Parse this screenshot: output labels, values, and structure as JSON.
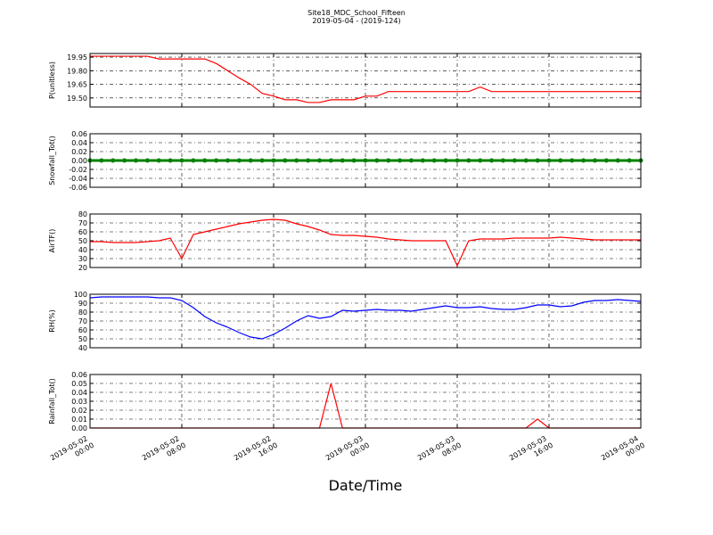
{
  "chart_data": [
    {
      "type": "line",
      "title": "Site18_MDC_School_Fifteen",
      "subtitle": "2019-05-04 - (2019-124)",
      "ylabel": "P(unitless)",
      "x": [
        "2019-05-02 00:00",
        "2019-05-02 01:00",
        "2019-05-02 02:00",
        "2019-05-02 03:00",
        "2019-05-02 04:00",
        "2019-05-02 05:00",
        "2019-05-02 06:00",
        "2019-05-02 07:00",
        "2019-05-02 08:00",
        "2019-05-02 09:00",
        "2019-05-02 10:00",
        "2019-05-02 11:00",
        "2019-05-02 12:00",
        "2019-05-02 13:00",
        "2019-05-02 14:00",
        "2019-05-02 15:00",
        "2019-05-02 16:00",
        "2019-05-02 17:00",
        "2019-05-02 18:00",
        "2019-05-02 19:00",
        "2019-05-02 20:00",
        "2019-05-02 21:00",
        "2019-05-02 22:00",
        "2019-05-02 23:00",
        "2019-05-03 00:00",
        "2019-05-03 01:00",
        "2019-05-03 02:00",
        "2019-05-03 03:00",
        "2019-05-03 04:00",
        "2019-05-03 05:00",
        "2019-05-03 06:00",
        "2019-05-03 07:00",
        "2019-05-03 08:00",
        "2019-05-03 09:00",
        "2019-05-03 10:00",
        "2019-05-03 11:00",
        "2019-05-03 12:00",
        "2019-05-03 13:00",
        "2019-05-03 14:00",
        "2019-05-03 15:00",
        "2019-05-03 16:00",
        "2019-05-03 17:00",
        "2019-05-03 18:00",
        "2019-05-03 19:00",
        "2019-05-03 20:00",
        "2019-05-03 21:00",
        "2019-05-03 22:00",
        "2019-05-03 23:00",
        "2019-05-04 00:00"
      ],
      "series": [
        {
          "name": "P(unitless)",
          "color": "#ff0000",
          "values": [
            19.96,
            19.96,
            19.96,
            19.96,
            19.96,
            19.96,
            19.93,
            19.93,
            19.93,
            19.93,
            19.93,
            19.88,
            19.8,
            19.72,
            19.65,
            19.55,
            19.52,
            19.48,
            19.48,
            19.45,
            19.45,
            19.48,
            19.48,
            19.48,
            19.52,
            19.52,
            19.57,
            19.57,
            19.57,
            19.57,
            19.57,
            19.57,
            19.57,
            19.57,
            19.62,
            19.57,
            19.57,
            19.57,
            19.57,
            19.57,
            19.57,
            19.57,
            19.57,
            19.57,
            19.57,
            19.57,
            19.57,
            19.57,
            19.57
          ]
        }
      ],
      "xlim": [
        "2019-05-02 00:00",
        "2019-05-04 00:00"
      ],
      "xticks": [
        "2019-05-02 00:00",
        "2019-05-02 08:00",
        "2019-05-02 16:00",
        "2019-05-03 00:00",
        "2019-05-03 08:00",
        "2019-05-03 16:00",
        "2019-05-04 00:00"
      ],
      "ylim": [
        19.4,
        19.99
      ],
      "yticks": [
        {
          "value": 19.5,
          "label": "19.50"
        },
        19.65,
        {
          "value": 19.8,
          "label": "19.80"
        },
        19.95
      ],
      "grid": true
    },
    {
      "type": "line",
      "ylabel": "Snowfall_Tot()",
      "marker": true,
      "x": [
        "2019-05-02 00:00",
        "2019-05-02 01:00",
        "2019-05-02 02:00",
        "2019-05-02 03:00",
        "2019-05-02 04:00",
        "2019-05-02 05:00",
        "2019-05-02 06:00",
        "2019-05-02 07:00",
        "2019-05-02 08:00",
        "2019-05-02 09:00",
        "2019-05-02 10:00",
        "2019-05-02 11:00",
        "2019-05-02 12:00",
        "2019-05-02 13:00",
        "2019-05-02 14:00",
        "2019-05-02 15:00",
        "2019-05-02 16:00",
        "2019-05-02 17:00",
        "2019-05-02 18:00",
        "2019-05-02 19:00",
        "2019-05-02 20:00",
        "2019-05-02 21:00",
        "2019-05-02 22:00",
        "2019-05-02 23:00",
        "2019-05-03 00:00",
        "2019-05-03 01:00",
        "2019-05-03 02:00",
        "2019-05-03 03:00",
        "2019-05-03 04:00",
        "2019-05-03 05:00",
        "2019-05-03 06:00",
        "2019-05-03 07:00",
        "2019-05-03 08:00",
        "2019-05-03 09:00",
        "2019-05-03 10:00",
        "2019-05-03 11:00",
        "2019-05-03 12:00",
        "2019-05-03 13:00",
        "2019-05-03 14:00",
        "2019-05-03 15:00",
        "2019-05-03 16:00",
        "2019-05-03 17:00",
        "2019-05-03 18:00",
        "2019-05-03 19:00",
        "2019-05-03 20:00",
        "2019-05-03 21:00",
        "2019-05-03 22:00",
        "2019-05-03 23:00",
        "2019-05-04 00:00"
      ],
      "series": [
        {
          "name": "Snowfall_Tot()",
          "color": "#008000",
          "values": [
            0,
            0,
            0,
            0,
            0,
            0,
            0,
            0,
            0,
            0,
            0,
            0,
            0,
            0,
            0,
            0,
            0,
            0,
            0,
            0,
            0,
            0,
            0,
            0,
            0,
            0,
            0,
            0,
            0,
            0,
            0,
            0,
            0,
            0,
            0,
            0,
            0,
            0,
            0,
            0,
            0,
            0,
            0,
            0,
            0,
            0,
            0,
            0,
            0
          ]
        }
      ],
      "xlim": [
        "2019-05-02 00:00",
        "2019-05-04 00:00"
      ],
      "xticks": [
        "2019-05-02 00:00",
        "2019-05-02 08:00",
        "2019-05-02 16:00",
        "2019-05-03 00:00",
        "2019-05-03 08:00",
        "2019-05-03 16:00",
        "2019-05-04 00:00"
      ],
      "ylim": [
        -0.06,
        0.06
      ],
      "yticks": [
        -0.06,
        -0.04,
        -0.02,
        {
          "value": 0,
          "label": "0.00"
        },
        0.02,
        0.04,
        0.06
      ],
      "grid": true
    },
    {
      "type": "line",
      "ylabel": "AirTF()",
      "x": [
        "2019-05-02 00:00",
        "2019-05-02 01:00",
        "2019-05-02 02:00",
        "2019-05-02 03:00",
        "2019-05-02 04:00",
        "2019-05-02 05:00",
        "2019-05-02 06:00",
        "2019-05-02 07:00",
        "2019-05-02 08:00",
        "2019-05-02 09:00",
        "2019-05-02 10:00",
        "2019-05-02 11:00",
        "2019-05-02 12:00",
        "2019-05-02 13:00",
        "2019-05-02 14:00",
        "2019-05-02 15:00",
        "2019-05-02 16:00",
        "2019-05-02 17:00",
        "2019-05-02 18:00",
        "2019-05-02 19:00",
        "2019-05-02 20:00",
        "2019-05-02 21:00",
        "2019-05-02 22:00",
        "2019-05-02 23:00",
        "2019-05-03 00:00",
        "2019-05-03 01:00",
        "2019-05-03 02:00",
        "2019-05-03 03:00",
        "2019-05-03 04:00",
        "2019-05-03 05:00",
        "2019-05-03 06:00",
        "2019-05-03 07:00",
        "2019-05-03 08:00",
        "2019-05-03 09:00",
        "2019-05-03 10:00",
        "2019-05-03 11:00",
        "2019-05-03 12:00",
        "2019-05-03 13:00",
        "2019-05-03 14:00",
        "2019-05-03 15:00",
        "2019-05-03 16:00",
        "2019-05-03 17:00",
        "2019-05-03 18:00",
        "2019-05-03 19:00",
        "2019-05-03 20:00",
        "2019-05-03 21:00",
        "2019-05-03 22:00",
        "2019-05-03 23:00",
        "2019-05-04 00:00"
      ],
      "series": [
        {
          "name": "AirTF()",
          "color": "#ff0000",
          "values": [
            49,
            49,
            48,
            48,
            48,
            49,
            50,
            53,
            30,
            57,
            60,
            63,
            66,
            69,
            71,
            73,
            74,
            73,
            69,
            66,
            62,
            57,
            56,
            56,
            55,
            54,
            52,
            51,
            50,
            50,
            50,
            50,
            22,
            50,
            52,
            52,
            52,
            53,
            53,
            53,
            53,
            54,
            53,
            52,
            51,
            51,
            51,
            51,
            51
          ]
        }
      ],
      "xlim": [
        "2019-05-02 00:00",
        "2019-05-04 00:00"
      ],
      "xticks": [
        "2019-05-02 00:00",
        "2019-05-02 08:00",
        "2019-05-02 16:00",
        "2019-05-03 00:00",
        "2019-05-03 08:00",
        "2019-05-03 16:00",
        "2019-05-04 00:00"
      ],
      "ylim": [
        20,
        80
      ],
      "yticks": [
        20,
        30,
        40,
        50,
        60,
        70,
        80
      ],
      "grid": true
    },
    {
      "type": "line",
      "ylabel": "RH(%)",
      "x": [
        "2019-05-02 00:00",
        "2019-05-02 01:00",
        "2019-05-02 02:00",
        "2019-05-02 03:00",
        "2019-05-02 04:00",
        "2019-05-02 05:00",
        "2019-05-02 06:00",
        "2019-05-02 07:00",
        "2019-05-02 08:00",
        "2019-05-02 09:00",
        "2019-05-02 10:00",
        "2019-05-02 11:00",
        "2019-05-02 12:00",
        "2019-05-02 13:00",
        "2019-05-02 14:00",
        "2019-05-02 15:00",
        "2019-05-02 16:00",
        "2019-05-02 17:00",
        "2019-05-02 18:00",
        "2019-05-02 19:00",
        "2019-05-02 20:00",
        "2019-05-02 21:00",
        "2019-05-02 22:00",
        "2019-05-02 23:00",
        "2019-05-03 00:00",
        "2019-05-03 01:00",
        "2019-05-03 02:00",
        "2019-05-03 03:00",
        "2019-05-03 04:00",
        "2019-05-03 05:00",
        "2019-05-03 06:00",
        "2019-05-03 07:00",
        "2019-05-03 08:00",
        "2019-05-03 09:00",
        "2019-05-03 10:00",
        "2019-05-03 11:00",
        "2019-05-03 12:00",
        "2019-05-03 13:00",
        "2019-05-03 14:00",
        "2019-05-03 15:00",
        "2019-05-03 16:00",
        "2019-05-03 17:00",
        "2019-05-03 18:00",
        "2019-05-03 19:00",
        "2019-05-03 20:00",
        "2019-05-03 21:00",
        "2019-05-03 22:00",
        "2019-05-03 23:00",
        "2019-05-04 00:00"
      ],
      "series": [
        {
          "name": "RH(%)",
          "color": "#0000ff",
          "values": [
            96,
            97,
            97,
            97,
            97,
            97,
            96,
            96,
            93,
            85,
            75,
            68,
            63,
            57,
            52,
            50,
            55,
            62,
            70,
            76,
            73,
            75,
            82,
            81,
            82,
            83,
            82,
            82,
            81,
            83,
            85,
            87,
            85,
            85,
            86,
            84,
            83,
            83,
            85,
            88,
            88,
            86,
            87,
            91,
            93,
            93,
            94,
            93,
            92
          ]
        }
      ],
      "xlim": [
        "2019-05-02 00:00",
        "2019-05-04 00:00"
      ],
      "xticks": [
        "2019-05-02 00:00",
        "2019-05-02 08:00",
        "2019-05-02 16:00",
        "2019-05-03 00:00",
        "2019-05-03 08:00",
        "2019-05-03 16:00",
        "2019-05-04 00:00"
      ],
      "ylim": [
        40,
        100
      ],
      "yticks": [
        40,
        50,
        60,
        70,
        80,
        90,
        100
      ],
      "grid": true
    },
    {
      "type": "line",
      "ylabel": "Rainfall_Tot()",
      "xlabel": "Date/Time",
      "x": [
        "2019-05-02 00:00",
        "2019-05-02 01:00",
        "2019-05-02 02:00",
        "2019-05-02 03:00",
        "2019-05-02 04:00",
        "2019-05-02 05:00",
        "2019-05-02 06:00",
        "2019-05-02 07:00",
        "2019-05-02 08:00",
        "2019-05-02 09:00",
        "2019-05-02 10:00",
        "2019-05-02 11:00",
        "2019-05-02 12:00",
        "2019-05-02 13:00",
        "2019-05-02 14:00",
        "2019-05-02 15:00",
        "2019-05-02 16:00",
        "2019-05-02 17:00",
        "2019-05-02 18:00",
        "2019-05-02 19:00",
        "2019-05-02 20:00",
        "2019-05-02 21:00",
        "2019-05-02 22:00",
        "2019-05-02 23:00",
        "2019-05-03 00:00",
        "2019-05-03 01:00",
        "2019-05-03 02:00",
        "2019-05-03 03:00",
        "2019-05-03 04:00",
        "2019-05-03 05:00",
        "2019-05-03 06:00",
        "2019-05-03 07:00",
        "2019-05-03 08:00",
        "2019-05-03 09:00",
        "2019-05-03 10:00",
        "2019-05-03 11:00",
        "2019-05-03 12:00",
        "2019-05-03 13:00",
        "2019-05-03 14:00",
        "2019-05-03 15:00",
        "2019-05-03 16:00",
        "2019-05-03 17:00",
        "2019-05-03 18:00",
        "2019-05-03 19:00",
        "2019-05-03 20:00",
        "2019-05-03 21:00",
        "2019-05-03 22:00",
        "2019-05-03 23:00",
        "2019-05-04 00:00"
      ],
      "series": [
        {
          "name": "Rainfall_Tot()",
          "color": "#ff0000",
          "values": [
            0,
            0,
            0,
            0,
            0,
            0,
            0,
            0,
            0,
            0,
            0,
            0,
            0,
            0,
            0,
            0,
            0,
            0,
            0,
            0,
            0,
            0.05,
            0,
            0,
            0,
            0,
            0,
            0,
            0,
            0,
            0,
            0,
            0,
            0,
            0,
            0,
            0,
            0,
            0,
            0.01,
            0,
            0,
            0,
            0,
            0,
            0,
            0,
            0,
            0
          ]
        }
      ],
      "xlim": [
        "2019-05-02 00:00",
        "2019-05-04 00:00"
      ],
      "xticks": [
        "2019-05-02 00:00",
        "2019-05-02 08:00",
        "2019-05-02 16:00",
        "2019-05-03 00:00",
        "2019-05-03 08:00",
        "2019-05-03 16:00",
        "2019-05-04 00:00"
      ],
      "xticklabels": true,
      "ylim": [
        0,
        0.06
      ],
      "yticks": [
        {
          "value": 0,
          "label": "0.00"
        },
        0.01,
        0.02,
        0.03,
        0.04,
        0.05,
        0.06
      ],
      "grid": true
    }
  ]
}
